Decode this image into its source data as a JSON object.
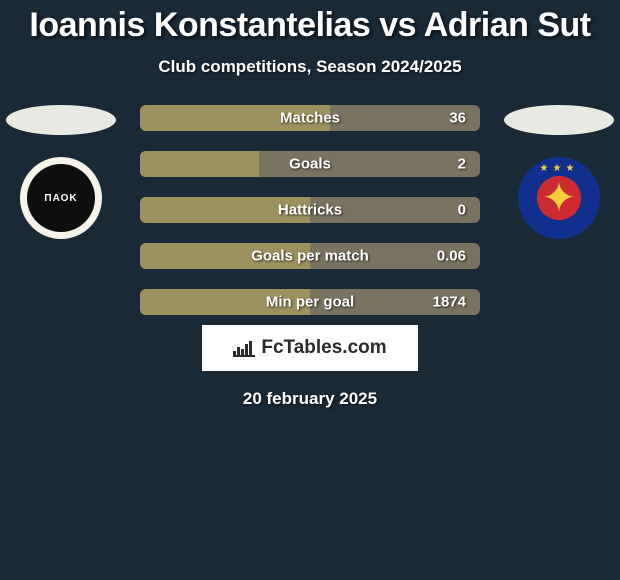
{
  "title": "Ioannis Konstantelias vs Adrian Sut",
  "subtitle": "Club competitions, Season 2024/2025",
  "date": "20 february 2025",
  "brand": "FcTables.com",
  "colors": {
    "page_bg": "#1a2936",
    "bar_bg": "#7a7360",
    "bar_fill": "#9e9160",
    "ellipse": "#e9e9e4",
    "text": "#ffffff",
    "logo_box_bg": "#ffffff",
    "logo_text": "#2b2b2b"
  },
  "crest_left": {
    "text": "ΠΑΟΚ"
  },
  "bars": [
    {
      "label": "Matches",
      "value": "36",
      "fill_pct": 56
    },
    {
      "label": "Goals",
      "value": "2",
      "fill_pct": 35
    },
    {
      "label": "Hattricks",
      "value": "0",
      "fill_pct": 50
    },
    {
      "label": "Goals per match",
      "value": "0.06",
      "fill_pct": 50
    },
    {
      "label": "Min per goal",
      "value": "1874",
      "fill_pct": 50
    }
  ],
  "chart_icon_bars": [
    4,
    8,
    6,
    11,
    14
  ]
}
